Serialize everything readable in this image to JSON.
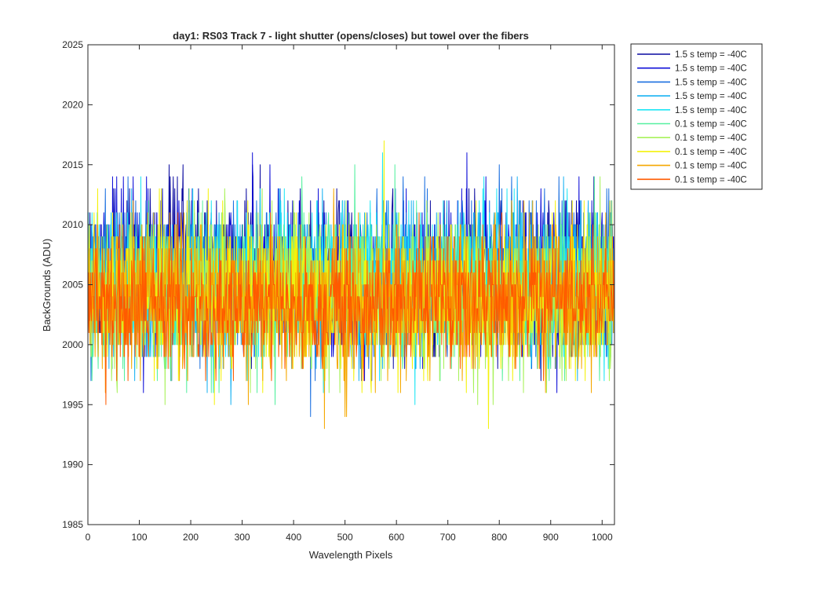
{
  "colors": {
    "background": "#ffffff",
    "axes": "#262626",
    "series_palette": [
      "#0a0aa0",
      "#0f0fd8",
      "#1a6fe0",
      "#19b2f2",
      "#1ee6f5",
      "#55f0a0",
      "#a8f25a",
      "#f4f20a",
      "#f5a800",
      "#ff5a00"
    ]
  },
  "chart_data": {
    "type": "line",
    "title": "day1: RS03  Track 7 - light shutter (opens/closes) but towel over the fibers",
    "xlabel": "Wavelength Pixels",
    "ylabel": "BackGrounds (ADU)",
    "xlim": [
      0,
      1024
    ],
    "ylim": [
      1985,
      2025
    ],
    "xticks": [
      0,
      100,
      200,
      300,
      400,
      500,
      600,
      700,
      800,
      900,
      1000
    ],
    "yticks": [
      1985,
      1990,
      1995,
      2000,
      2005,
      2010,
      2015,
      2020,
      2025
    ],
    "grid": false,
    "legend_position": "outside-top-right",
    "n_points": 1024,
    "series": [
      {
        "name": "1.5 s temp = -40C",
        "color": "#0a0aa0",
        "mean": 2005.8,
        "noise": 3.2
      },
      {
        "name": "1.5 s temp = -40C",
        "color": "#0f0fd8",
        "mean": 2005.8,
        "noise": 3.2
      },
      {
        "name": "1.5 s temp = -40C",
        "color": "#1a6fe0",
        "mean": 2005.5,
        "noise": 3.1
      },
      {
        "name": "1.5 s temp = -40C",
        "color": "#19b2f2",
        "mean": 2005.4,
        "noise": 3.1
      },
      {
        "name": "1.5 s temp = -40C",
        "color": "#1ee6f5",
        "mean": 2005.3,
        "noise": 3.1
      },
      {
        "name": "0.1 s temp = -40C",
        "color": "#55f0a0",
        "mean": 2004.3,
        "noise": 3.0
      },
      {
        "name": "0.1 s temp = -40C",
        "color": "#a8f25a",
        "mean": 2004.2,
        "noise": 3.0
      },
      {
        "name": "0.1 s temp = -40C",
        "color": "#f4f20a",
        "mean": 2004.0,
        "noise": 3.0
      },
      {
        "name": "0.1 s temp = -40C",
        "color": "#f5a800",
        "mean": 2003.8,
        "noise": 3.0
      },
      {
        "name": "0.1 s temp = -40C",
        "color": "#ff5a00",
        "mean": 2003.6,
        "noise": 2.6
      }
    ]
  }
}
